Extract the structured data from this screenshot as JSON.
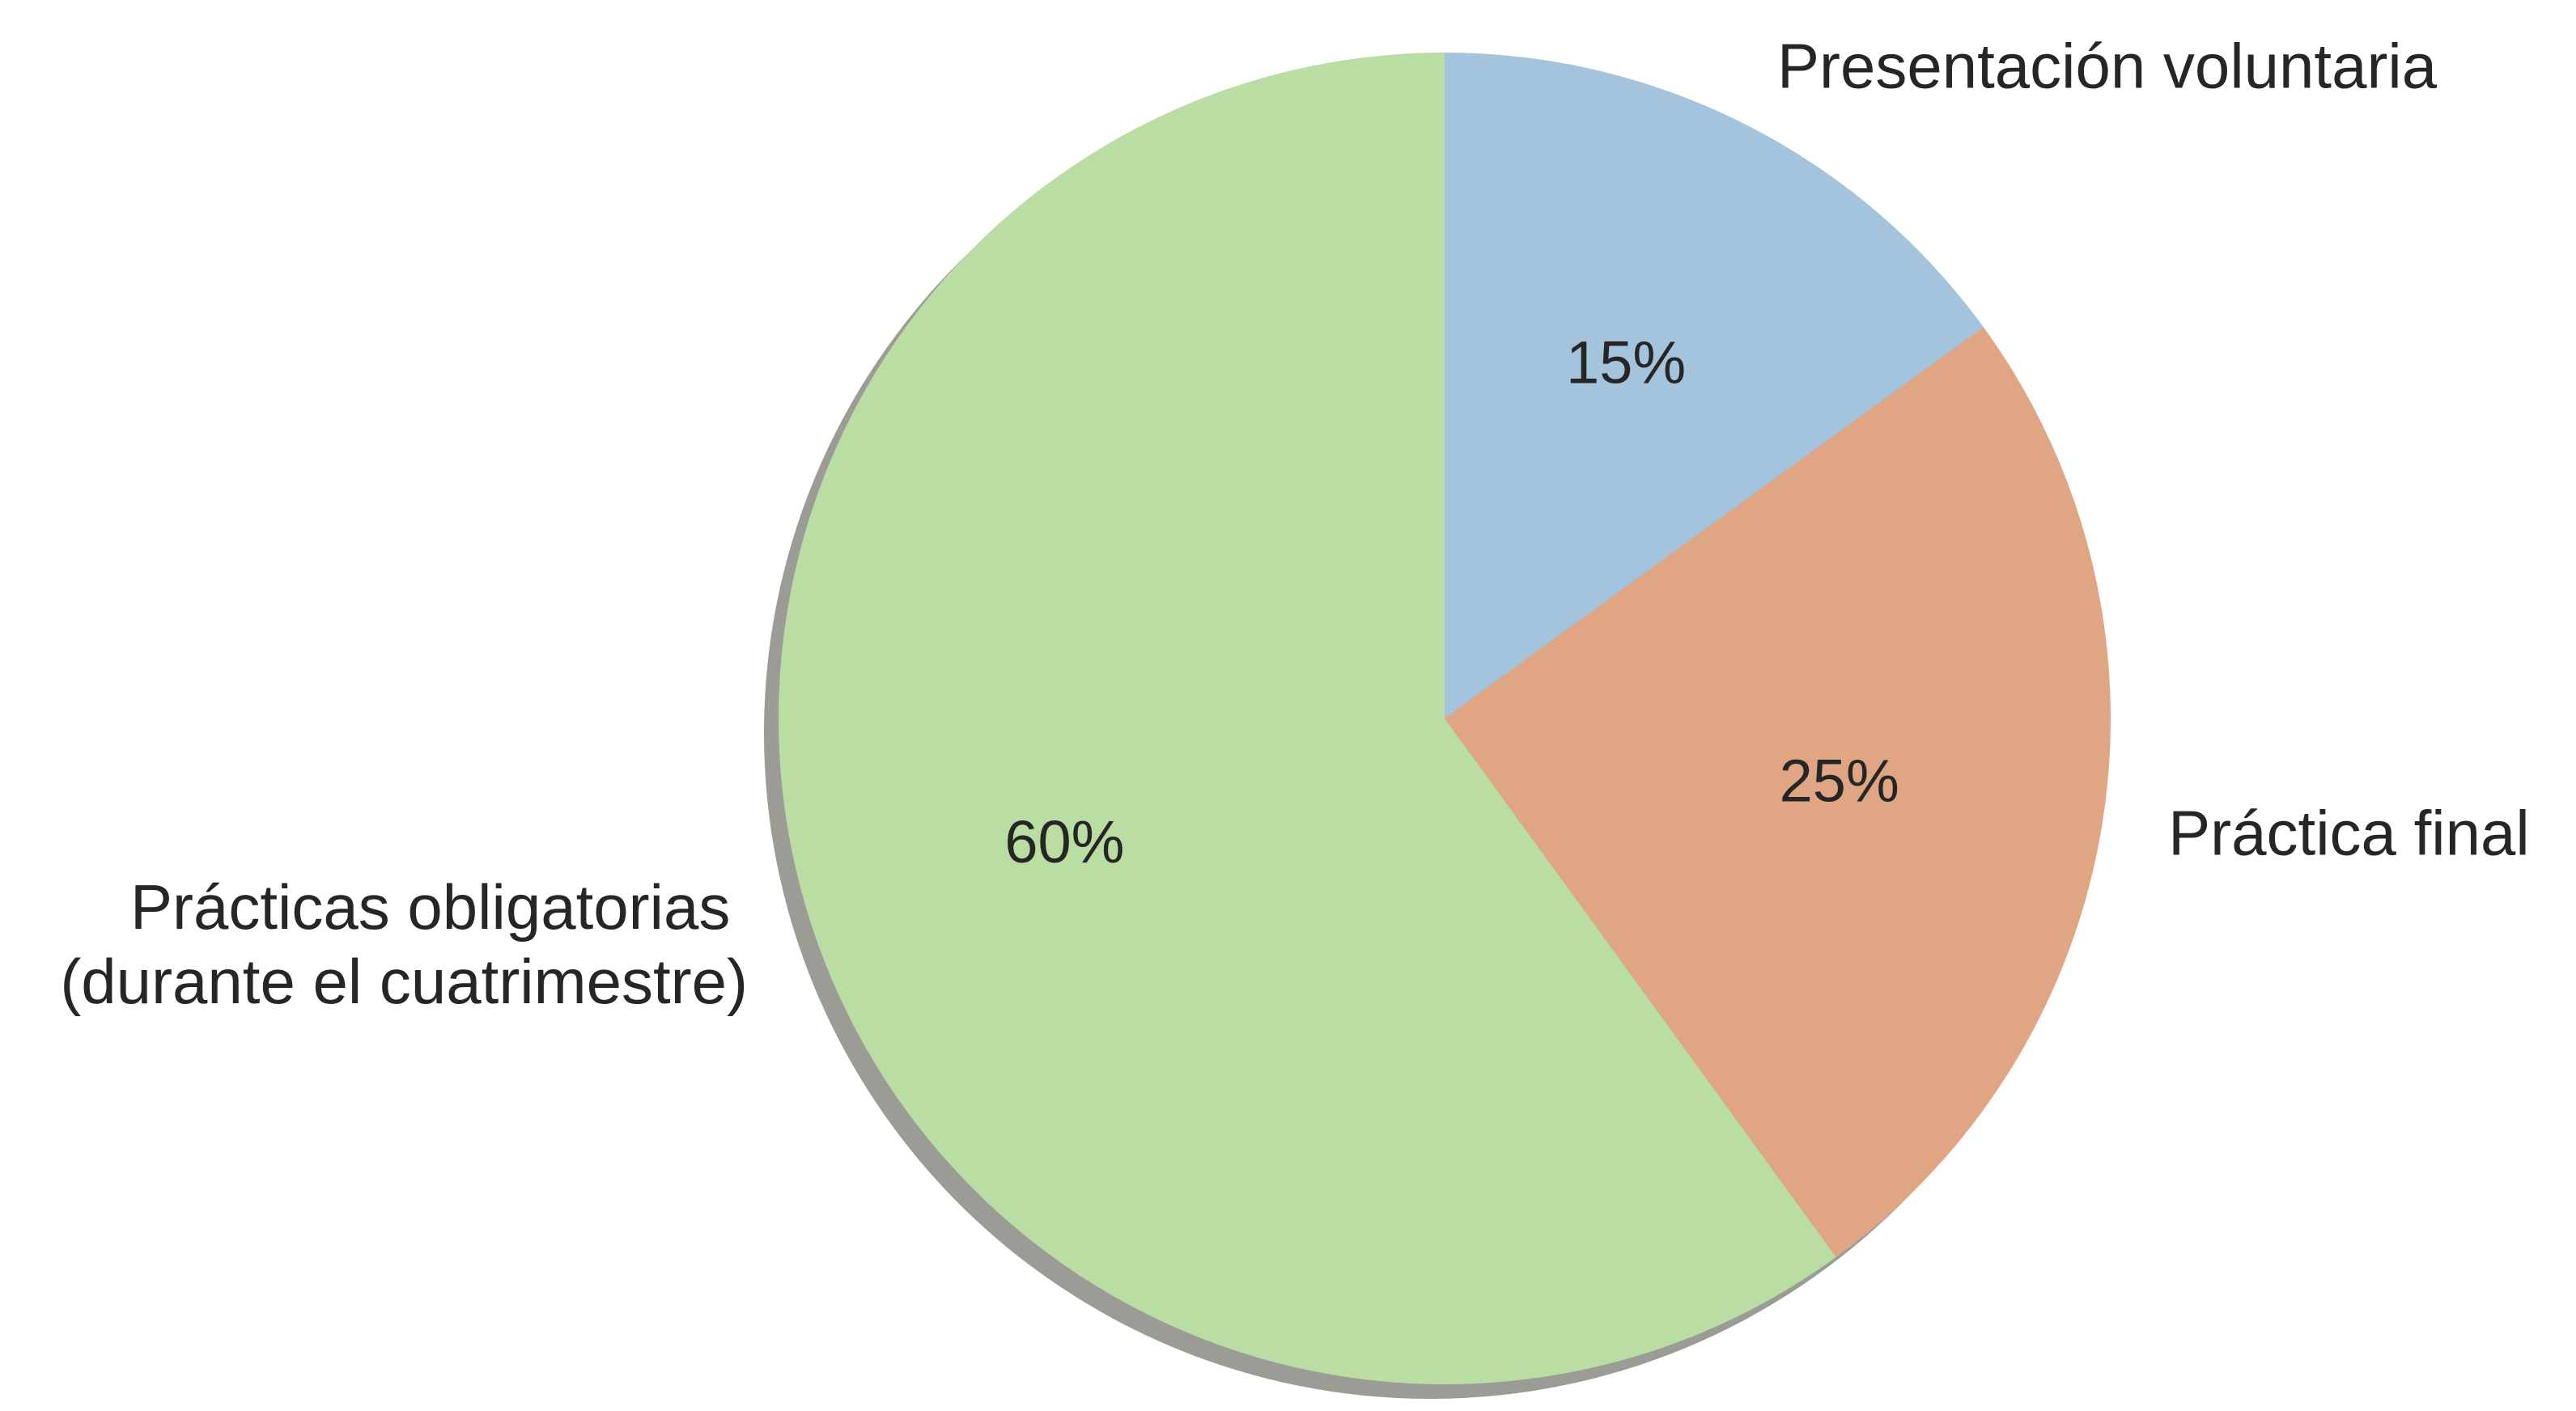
{
  "chart_data": {
    "type": "pie",
    "title": "",
    "shadow": true,
    "start_angle_deg": 90,
    "direction": "clockwise",
    "slices": [
      {
        "label": "Presentación voluntaria",
        "value": 15,
        "pct_label": "15%",
        "color": "#a3c4dc"
      },
      {
        "label": "Práctica final",
        "value": 25,
        "pct_label": "25%",
        "color": "#e0a582"
      },
      {
        "label_lines": [
          "Prácticas obligatorias",
          "(durante el cuatrimestre)"
        ],
        "value": 60,
        "pct_label": "60%",
        "color": "#badda4"
      }
    ],
    "shadow_color": "#9a9c95",
    "text_color": "#262626"
  }
}
